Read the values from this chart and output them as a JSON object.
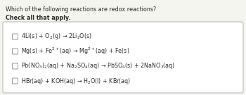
{
  "title_line1": "Which of the following reactions are redox reactions?",
  "title_line2": "Check all that apply.",
  "reactions": [
    "4Li(s) + O$_2$(g) → 2Li$_2$O(s)",
    "Mg(s) + Fe$^{2+}$(aq) → Mg$^{2+}$(aq) + Fe(s)",
    "Pb(NO$_3$)$_2$(aq) + Na$_2$SO$_4$(aq) → PbSO$_4$(s) + 2NaNO$_3$(aq)",
    "HBr(aq) + KOH(aq) → H$_2$O(l) + KBr(aq)"
  ],
  "bg_color": "#f5f5f0",
  "text_color": "#2a2a2a",
  "title_fontsize": 5.8,
  "bold_fontsize": 5.8,
  "reaction_fontsize": 5.8,
  "checkbox_edge_color": "#999999",
  "box_edge_color": "#bbbbbb",
  "box_face_color": "#ffffff"
}
